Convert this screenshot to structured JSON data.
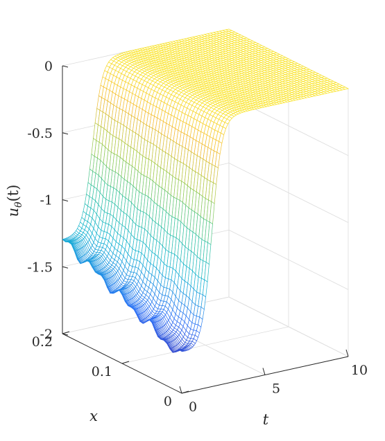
{
  "chart_data": {
    "type": "surface-mesh",
    "title": "",
    "zlabel": "u_θ(t)",
    "zlabel_parts": {
      "base": "u",
      "sub": "θ",
      "arg": "(t)"
    },
    "xlabel": "x",
    "tlabel": "t",
    "xlim": [
      0,
      0.2
    ],
    "tlim": [
      0,
      10
    ],
    "zlim": [
      -2,
      0
    ],
    "x_ticks": [
      "0",
      "0.1",
      "0.2"
    ],
    "t_ticks": [
      "0",
      "5",
      "10"
    ],
    "z_ticks": [
      "-2",
      "-1.5",
      "-1",
      "-0.5",
      "0"
    ],
    "grid": true,
    "colormap": "parula",
    "colormap_stops": [
      "#3e26a8",
      "#2b6ff5",
      "#12b3d1",
      "#35c39a",
      "#a0c940",
      "#f4b72b",
      "#f9e51c"
    ],
    "surface_model": {
      "plateau_value": 0,
      "rise_center_t": 1.8,
      "rise_width_t": 0.3,
      "min_value_at_x0": -1.74,
      "min_value_at_x02": -1.3,
      "noise_amplitude": 0.05
    }
  }
}
